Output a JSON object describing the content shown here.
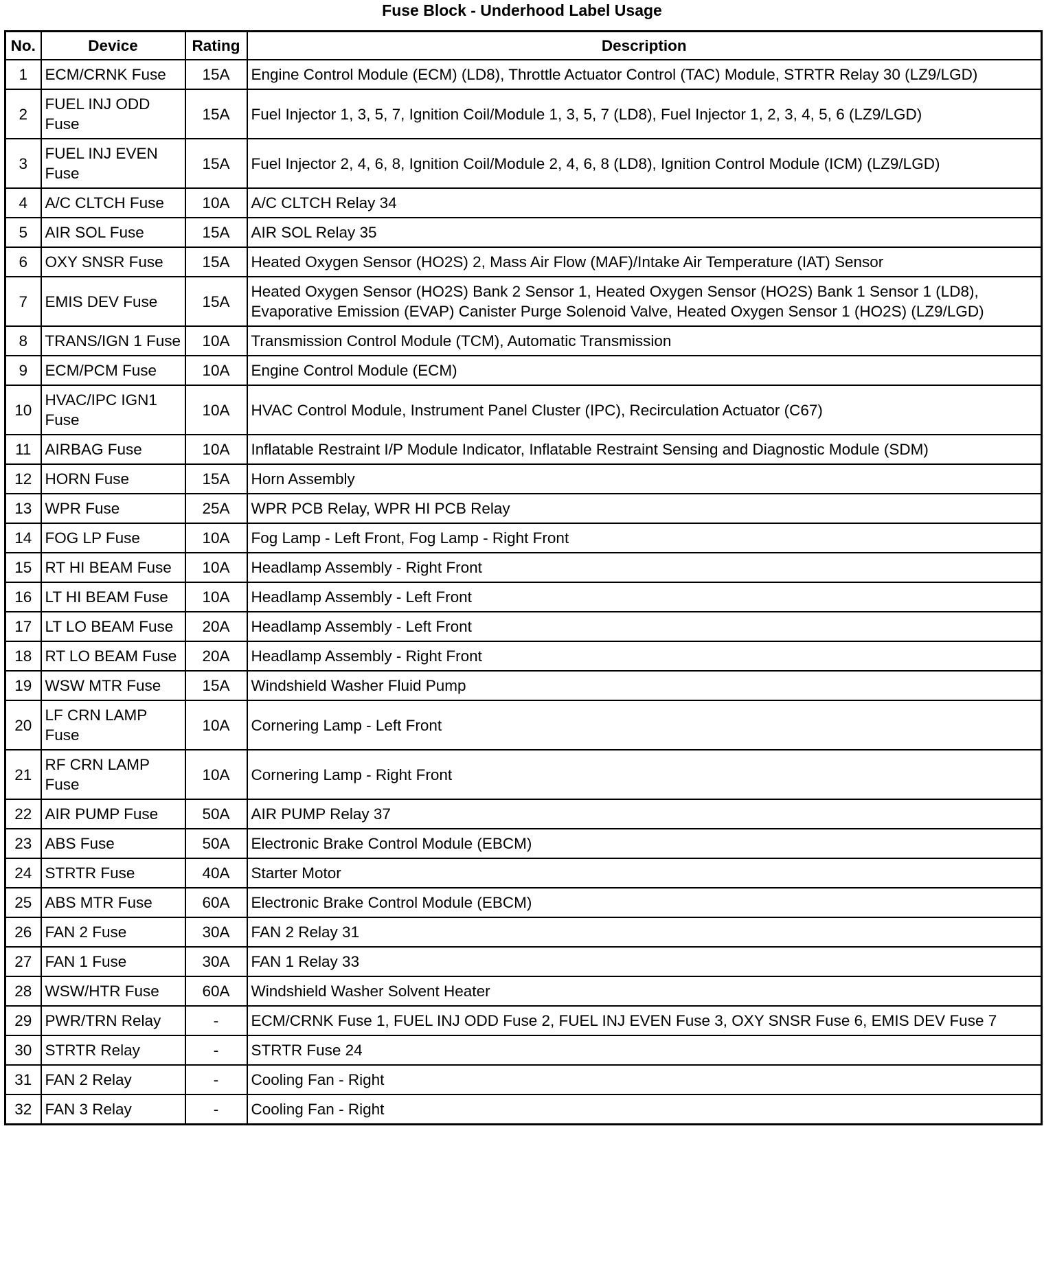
{
  "title": "Fuse Block - Underhood Label Usage",
  "headers": {
    "no": "No.",
    "device": "Device",
    "rating": "Rating",
    "description": "Description"
  },
  "rows": [
    {
      "no": "1",
      "device": "ECM/CRNK Fuse",
      "rating": "15A",
      "description": "Engine Control Module (ECM) (LD8), Throttle Actuator Control (TAC) Module, STRTR Relay 30 (LZ9/LGD)"
    },
    {
      "no": "2",
      "device": "FUEL INJ ODD Fuse",
      "rating": "15A",
      "description": "Fuel Injector 1, 3, 5, 7, Ignition Coil/Module 1, 3, 5, 7 (LD8), Fuel Injector 1, 2, 3, 4, 5, 6 (LZ9/LGD)"
    },
    {
      "no": "3",
      "device": "FUEL INJ EVEN Fuse",
      "rating": "15A",
      "description": "Fuel Injector 2, 4, 6, 8, Ignition Coil/Module 2, 4, 6, 8 (LD8), Ignition Control Module (ICM) (LZ9/LGD)"
    },
    {
      "no": "4",
      "device": "A/C CLTCH Fuse",
      "rating": "10A",
      "description": "A/C CLTCH Relay 34"
    },
    {
      "no": "5",
      "device": "AIR SOL Fuse",
      "rating": "15A",
      "description": "AIR SOL Relay 35"
    },
    {
      "no": "6",
      "device": "OXY SNSR Fuse",
      "rating": "15A",
      "description": "Heated Oxygen Sensor (HO2S) 2, Mass Air Flow (MAF)/Intake Air Temperature (IAT) Sensor"
    },
    {
      "no": "7",
      "device": "EMIS DEV Fuse",
      "rating": "15A",
      "description": "Heated Oxygen Sensor (HO2S) Bank 2 Sensor 1, Heated Oxygen Sensor (HO2S) Bank 1 Sensor 1 (LD8), Evaporative Emission (EVAP) Canister Purge Solenoid Valve, Heated Oxygen Sensor 1 (HO2S) (LZ9/LGD)"
    },
    {
      "no": "8",
      "device": "TRANS/IGN 1 Fuse",
      "rating": "10A",
      "description": "Transmission Control Module (TCM), Automatic Transmission"
    },
    {
      "no": "9",
      "device": "ECM/PCM Fuse",
      "rating": "10A",
      "description": "Engine Control Module (ECM)"
    },
    {
      "no": "10",
      "device": "HVAC/IPC IGN1 Fuse",
      "rating": "10A",
      "description": "HVAC Control Module, Instrument Panel Cluster (IPC), Recirculation Actuator (C67)"
    },
    {
      "no": "11",
      "device": "AIRBAG Fuse",
      "rating": "10A",
      "description": "Inflatable Restraint I/P Module Indicator, Inflatable Restraint Sensing and Diagnostic Module (SDM)"
    },
    {
      "no": "12",
      "device": "HORN Fuse",
      "rating": "15A",
      "description": "Horn Assembly"
    },
    {
      "no": "13",
      "device": "WPR Fuse",
      "rating": "25A",
      "description": "WPR PCB Relay, WPR HI PCB Relay"
    },
    {
      "no": "14",
      "device": "FOG LP Fuse",
      "rating": "10A",
      "description": "Fog Lamp - Left Front, Fog Lamp - Right Front"
    },
    {
      "no": "15",
      "device": "RT HI BEAM Fuse",
      "rating": "10A",
      "description": "Headlamp Assembly - Right Front"
    },
    {
      "no": "16",
      "device": "LT HI BEAM Fuse",
      "rating": "10A",
      "description": "Headlamp Assembly - Left Front"
    },
    {
      "no": "17",
      "device": "LT LO BEAM Fuse",
      "rating": "20A",
      "description": "Headlamp Assembly - Left Front"
    },
    {
      "no": "18",
      "device": "RT LO BEAM Fuse",
      "rating": "20A",
      "description": "Headlamp Assembly - Right Front"
    },
    {
      "no": "19",
      "device": "WSW MTR Fuse",
      "rating": "15A",
      "description": "Windshield Washer Fluid Pump"
    },
    {
      "no": "20",
      "device": "LF CRN LAMP Fuse",
      "rating": "10A",
      "description": "Cornering Lamp - Left Front"
    },
    {
      "no": "21",
      "device": "RF CRN LAMP Fuse",
      "rating": "10A",
      "description": "Cornering Lamp - Right Front"
    },
    {
      "no": "22",
      "device": "AIR PUMP Fuse",
      "rating": "50A",
      "description": "AIR PUMP Relay 37"
    },
    {
      "no": "23",
      "device": "ABS Fuse",
      "rating": "50A",
      "description": "Electronic Brake Control Module (EBCM)"
    },
    {
      "no": "24",
      "device": "STRTR Fuse",
      "rating": "40A",
      "description": "Starter Motor"
    },
    {
      "no": "25",
      "device": "ABS MTR Fuse",
      "rating": "60A",
      "description": "Electronic Brake Control Module (EBCM)"
    },
    {
      "no": "26",
      "device": "FAN 2 Fuse",
      "rating": "30A",
      "description": "FAN 2 Relay 31"
    },
    {
      "no": "27",
      "device": "FAN 1 Fuse",
      "rating": "30A",
      "description": "FAN 1 Relay 33"
    },
    {
      "no": "28",
      "device": "WSW/HTR Fuse",
      "rating": "60A",
      "description": "Windshield Washer Solvent Heater"
    },
    {
      "no": "29",
      "device": "PWR/TRN Relay",
      "rating": "-",
      "description": "ECM/CRNK Fuse 1, FUEL INJ ODD Fuse 2, FUEL INJ EVEN Fuse 3, OXY SNSR Fuse 6, EMIS DEV Fuse 7"
    },
    {
      "no": "30",
      "device": "STRTR Relay",
      "rating": "-",
      "description": "STRTR Fuse 24"
    },
    {
      "no": "31",
      "device": "FAN 2 Relay",
      "rating": "-",
      "description": "Cooling Fan - Right"
    },
    {
      "no": "32",
      "device": "FAN 3 Relay",
      "rating": "-",
      "description": "Cooling Fan - Right"
    }
  ]
}
